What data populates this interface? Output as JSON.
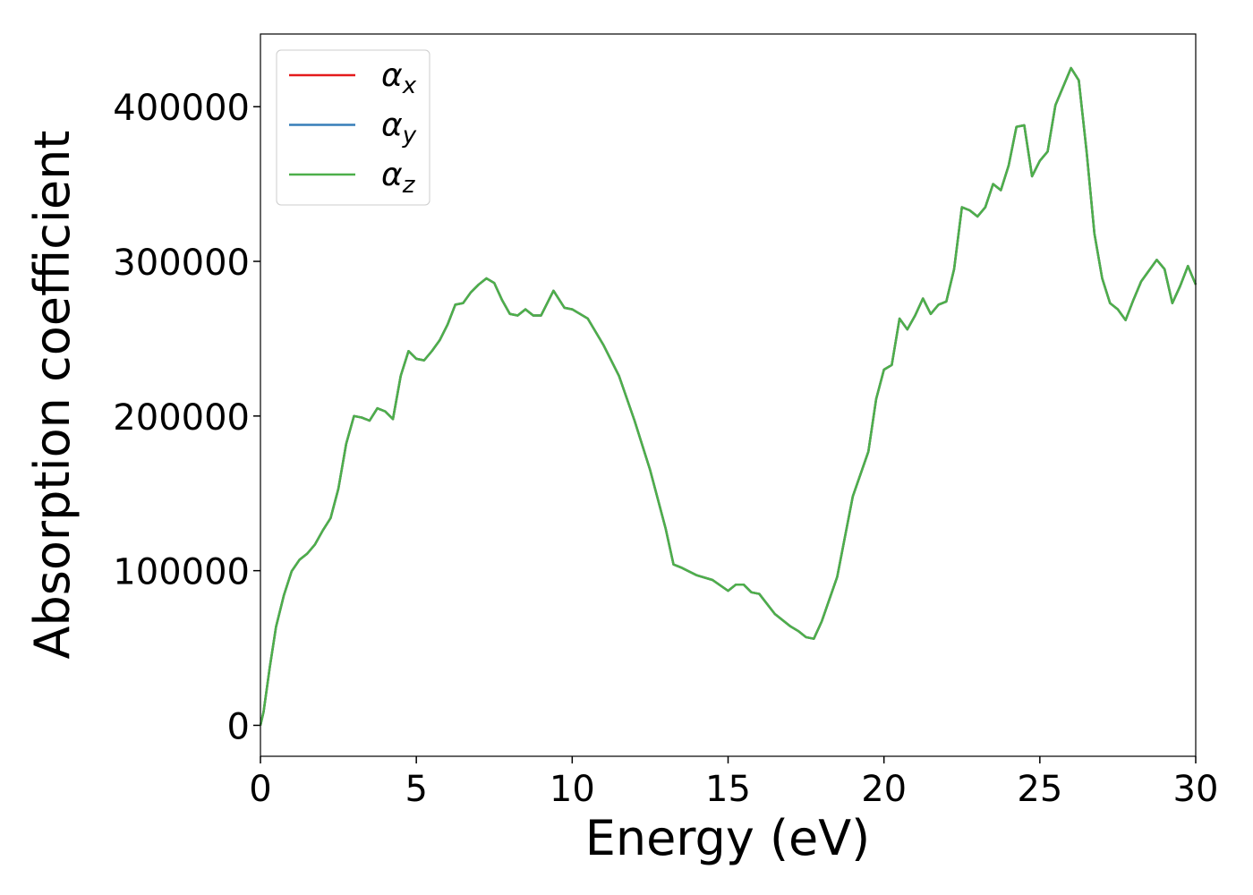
{
  "chart_data": {
    "type": "line",
    "xlabel": "Energy (eV)",
    "ylabel": "Absorption coefficient",
    "x": [
      0,
      0.1,
      0.3,
      0.5,
      0.75,
      1,
      1.25,
      1.5,
      1.75,
      2,
      2.25,
      2.5,
      2.75,
      3,
      3.25,
      3.5,
      3.75,
      4,
      4.25,
      4.5,
      4.75,
      5,
      5.25,
      5.5,
      5.75,
      6,
      6.25,
      6.5,
      6.75,
      7,
      7.25,
      7.5,
      7.75,
      8,
      8.25,
      8.5,
      8.75,
      9,
      9.25,
      9.4,
      9.75,
      10,
      10.5,
      11,
      11.5,
      12,
      12.5,
      13,
      13.25,
      13.5,
      14,
      14.5,
      15,
      15.25,
      15.5,
      15.75,
      16,
      16.5,
      17,
      17.25,
      17.5,
      17.75,
      18,
      18.5,
      19,
      19.5,
      19.75,
      20,
      20.25,
      20.5,
      20.75,
      21,
      21.25,
      21.5,
      21.75,
      22,
      22.25,
      22.5,
      22.75,
      23,
      23.25,
      23.5,
      23.75,
      24,
      24.25,
      24.5,
      24.75,
      25,
      25.25,
      25.5,
      26,
      26.25,
      26.5,
      26.75,
      27,
      27.25,
      27.5,
      27.75,
      28,
      28.25,
      28.5,
      28.75,
      29,
      29.25,
      29.5,
      29.75,
      30
    ],
    "series": [
      {
        "name": "αx",
        "color": "#e41a1c",
        "values": [
          0,
          8700,
          37600,
          63700,
          84000,
          99600,
          107000,
          111000,
          117000,
          126000,
          134000,
          153000,
          182000,
          200000,
          199000,
          197000,
          205000,
          203000,
          198000,
          226000,
          242000,
          237000,
          236000,
          242000,
          249000,
          259000,
          272000,
          273000,
          280000,
          285000,
          289000,
          286000,
          275000,
          266000,
          265000,
          269000,
          265000,
          265000,
          275000,
          281000,
          270000,
          269000,
          263000,
          246000,
          226000,
          197000,
          165000,
          127000,
          104000,
          102000,
          97000,
          94000,
          87000,
          91000,
          91000,
          86000,
          85000,
          72000,
          64000,
          61000,
          57000,
          56000,
          67000,
          96000,
          148000,
          177000,
          211000,
          230000,
          233000,
          263000,
          256000,
          265000,
          276000,
          266000,
          272000,
          274000,
          295000,
          335000,
          333000,
          329000,
          335000,
          350000,
          346000,
          362000,
          387000,
          388000,
          355000,
          365000,
          371000,
          401000,
          425000,
          417000,
          371000,
          318000,
          289000,
          273000,
          269000,
          262000,
          275000,
          287000,
          294000,
          301000,
          295000,
          273000,
          284000,
          297000,
          285000
        ]
      },
      {
        "name": "αy",
        "color": "#377eb8",
        "values": [
          0,
          8700,
          37600,
          63700,
          84000,
          99600,
          107000,
          111000,
          117000,
          126000,
          134000,
          153000,
          182000,
          200000,
          199000,
          197000,
          205000,
          203000,
          198000,
          226000,
          242000,
          237000,
          236000,
          242000,
          249000,
          259000,
          272000,
          273000,
          280000,
          285000,
          289000,
          286000,
          275000,
          266000,
          265000,
          269000,
          265000,
          265000,
          275000,
          281000,
          270000,
          269000,
          263000,
          246000,
          226000,
          197000,
          165000,
          127000,
          104000,
          102000,
          97000,
          94000,
          87000,
          91000,
          91000,
          86000,
          85000,
          72000,
          64000,
          61000,
          57000,
          56000,
          67000,
          96000,
          148000,
          177000,
          211000,
          230000,
          233000,
          263000,
          256000,
          265000,
          276000,
          266000,
          272000,
          274000,
          295000,
          335000,
          333000,
          329000,
          335000,
          350000,
          346000,
          362000,
          387000,
          388000,
          355000,
          365000,
          371000,
          401000,
          425000,
          417000,
          371000,
          318000,
          289000,
          273000,
          269000,
          262000,
          275000,
          287000,
          294000,
          301000,
          295000,
          273000,
          284000,
          297000,
          285000
        ]
      },
      {
        "name": "αz",
        "color": "#4daf4a",
        "values": [
          0,
          8700,
          37600,
          63700,
          84000,
          99600,
          107000,
          111000,
          117000,
          126000,
          134000,
          153000,
          182000,
          200000,
          199000,
          197000,
          205000,
          203000,
          198000,
          226000,
          242000,
          237000,
          236000,
          242000,
          249000,
          259000,
          272000,
          273000,
          280000,
          285000,
          289000,
          286000,
          275000,
          266000,
          265000,
          269000,
          265000,
          265000,
          275000,
          281000,
          270000,
          269000,
          263000,
          246000,
          226000,
          197000,
          165000,
          127000,
          104000,
          102000,
          97000,
          94000,
          87000,
          91000,
          91000,
          86000,
          85000,
          72000,
          64000,
          61000,
          57000,
          56000,
          67000,
          96000,
          148000,
          177000,
          211000,
          230000,
          233000,
          263000,
          256000,
          265000,
          276000,
          266000,
          272000,
          274000,
          295000,
          335000,
          333000,
          329000,
          335000,
          350000,
          346000,
          362000,
          387000,
          388000,
          355000,
          365000,
          371000,
          401000,
          425000,
          417000,
          371000,
          318000,
          289000,
          273000,
          269000,
          262000,
          275000,
          287000,
          294000,
          301000,
          295000,
          273000,
          284000,
          297000,
          285000
        ]
      }
    ],
    "xlim": [
      0,
      30
    ],
    "xticks": [
      0,
      5,
      10,
      15,
      20,
      25,
      30
    ],
    "ylim": [
      -20000,
      447000
    ],
    "yticks": [
      0,
      100000,
      200000,
      300000,
      400000
    ],
    "grid": false,
    "legend": "upper left"
  }
}
